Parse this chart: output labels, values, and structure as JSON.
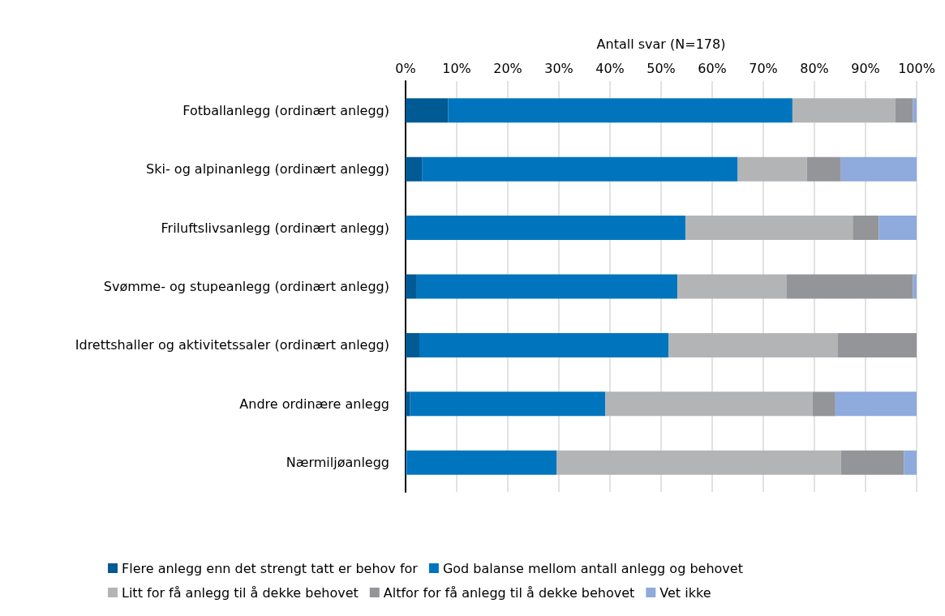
{
  "chart_data": {
    "type": "bar",
    "orientation": "horizontal",
    "stacked": true,
    "xlabel": "Antall svar (N=178)",
    "categories": [
      "Fotballanlegg (ordinært anlegg)",
      "Ski- og alpinanlegg (ordinært anlegg)",
      "Friluftslivsanlegg (ordinært anlegg)",
      "Svømme- og stupeanlegg (ordinært anlegg)",
      "Idrettshaller og aktivitetssaler (ordinært anlegg)",
      "Andre ordinære anlegg",
      "Nærmiljøanlegg"
    ],
    "series": [
      {
        "name": "Flere anlegg enn det strengt tatt er behov for",
        "color": "#005a94",
        "values": [
          8.3,
          3.2,
          0.3,
          2.2,
          2.7,
          0.9,
          0.2
        ]
      },
      {
        "name": "God balanse mellom antall anlegg og behovet",
        "color": "#0075be",
        "values": [
          67.4,
          61.8,
          54.5,
          51.0,
          48.8,
          38.2,
          29.4
        ]
      },
      {
        "name": "Litt for få anlegg til å dekke behovet",
        "color": "#b3b4b6",
        "values": [
          20.1,
          13.5,
          32.7,
          21.3,
          33.1,
          40.5,
          55.6
        ]
      },
      {
        "name": "Altfor for få anlegg til å dekke behovet",
        "color": "#949599",
        "values": [
          3.5,
          6.7,
          5.1,
          24.8,
          15.4,
          4.5,
          12.3
        ]
      },
      {
        "name": "Vet ikke",
        "color": "#8faadc",
        "values": [
          0.7,
          14.8,
          7.4,
          0.7,
          0,
          15.9,
          2.5
        ]
      }
    ],
    "xlim": [
      0,
      100
    ],
    "xticks": [
      {
        "value": 0,
        "label": "0%"
      },
      {
        "value": 10,
        "label": "10%"
      },
      {
        "value": 20,
        "label": "20%"
      },
      {
        "value": 30,
        "label": "30%"
      },
      {
        "value": 40,
        "label": "40%"
      },
      {
        "value": 50,
        "label": "50%"
      },
      {
        "value": 60,
        "label": "60%"
      },
      {
        "value": 70,
        "label": "70%"
      },
      {
        "value": 80,
        "label": "80%"
      },
      {
        "value": 90,
        "label": "90%"
      },
      {
        "value": 100,
        "label": "100%"
      }
    ],
    "grid": "x",
    "legend": "bottom"
  }
}
